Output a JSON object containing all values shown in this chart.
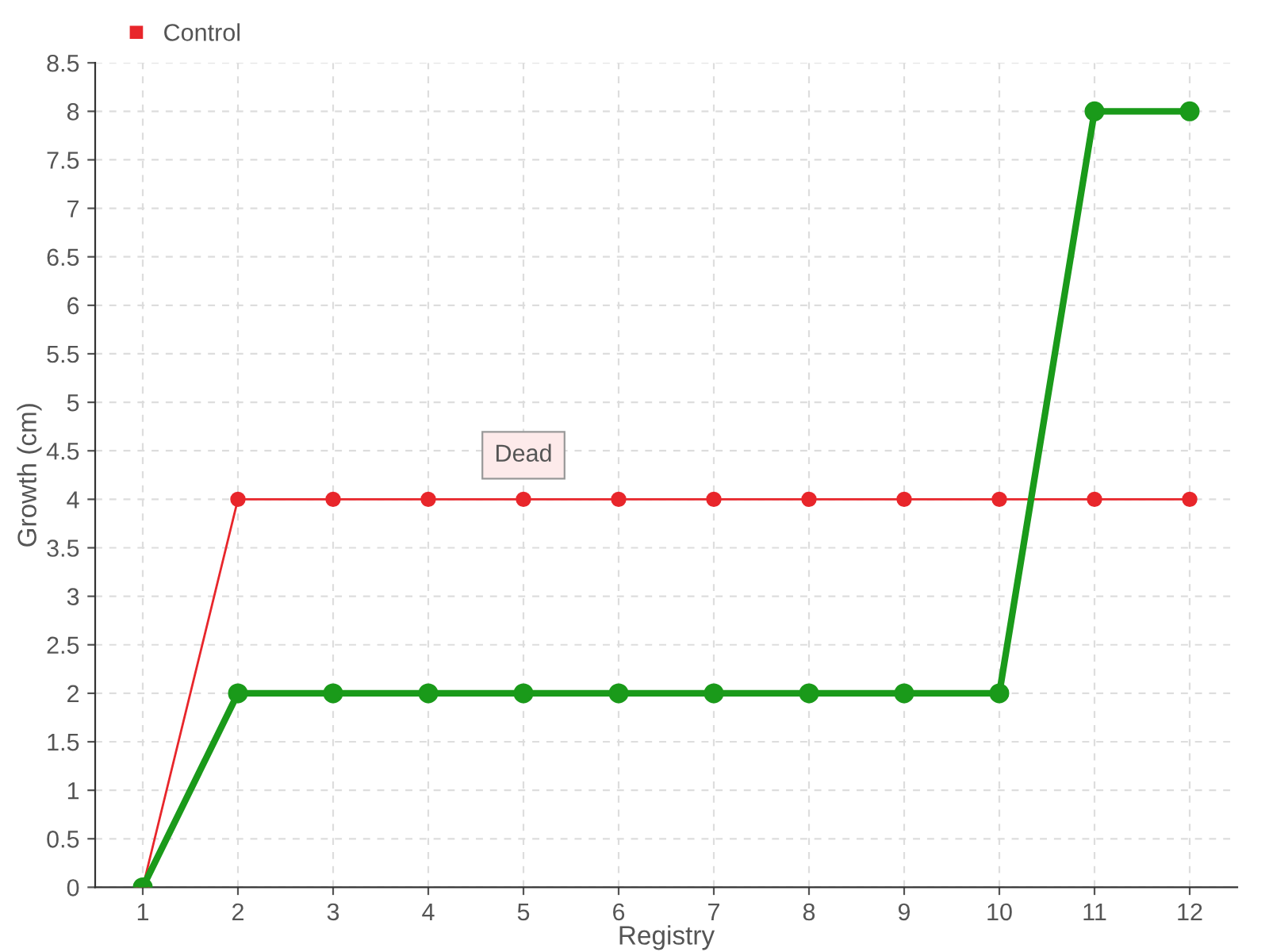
{
  "chart_data": {
    "type": "line",
    "xlabel": "Registry",
    "ylabel": "Growth (cm)",
    "categories": [
      "1",
      "2",
      "3",
      "4",
      "5",
      "6",
      "7",
      "8",
      "9",
      "10",
      "11",
      "12"
    ],
    "series": [
      {
        "color": "#1a9a1a",
        "values": [
          0,
          2,
          2,
          2,
          2,
          2,
          2,
          2,
          2,
          2,
          8,
          8
        ]
      },
      {
        "name": "Control",
        "color": "#e8262b",
        "values": [
          0,
          4,
          4,
          4,
          4,
          4,
          4,
          4,
          4,
          4,
          4,
          4
        ]
      }
    ],
    "ylim": [
      0,
      8.5
    ],
    "yticks": [
      0,
      0.5,
      1,
      1.5,
      2,
      2.5,
      3,
      3.5,
      4,
      4.5,
      5,
      5.5,
      6,
      6.5,
      7,
      7.5,
      8,
      8.5
    ],
    "annotations": [
      {
        "text": "Dead",
        "x": "5",
        "y": 4
      }
    ],
    "grid": true,
    "legend": "top left",
    "marker": "circle",
    "line_style": "solid"
  }
}
